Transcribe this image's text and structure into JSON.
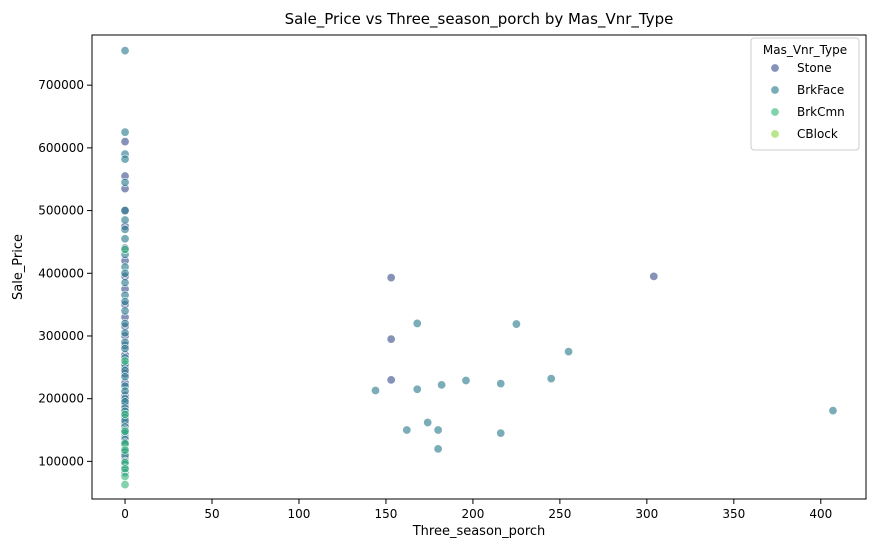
{
  "chart_data": {
    "type": "scatter",
    "title": "Sale_Price vs Three_season_porch by Mas_Vnr_Type",
    "xlabel": "Three_season_porch",
    "ylabel": "Sale_Price",
    "xlim": [
      -19,
      426
    ],
    "ylim": [
      40000,
      780000
    ],
    "x_ticks": [
      0,
      50,
      100,
      150,
      200,
      250,
      300,
      350,
      400
    ],
    "y_ticks": [
      100000,
      200000,
      300000,
      400000,
      500000,
      600000,
      700000
    ],
    "grid": false,
    "legend": {
      "title": "Mas_Vnr_Type",
      "position": "top-right"
    },
    "series": [
      {
        "name": "Stone",
        "color": "#3b4f8a",
        "points": [
          [
            0,
            610000
          ],
          [
            0,
            555000
          ],
          [
            0,
            535000
          ],
          [
            0,
            500000
          ],
          [
            0,
            475000
          ],
          [
            0,
            440000
          ],
          [
            0,
            420000
          ],
          [
            0,
            395000
          ],
          [
            0,
            375000
          ],
          [
            0,
            350000
          ],
          [
            0,
            330000
          ],
          [
            0,
            315000
          ],
          [
            0,
            300000
          ],
          [
            0,
            285000
          ],
          [
            0,
            270000
          ],
          [
            0,
            250000
          ],
          [
            0,
            240000
          ],
          [
            0,
            225000
          ],
          [
            0,
            205000
          ],
          [
            0,
            190000
          ],
          [
            0,
            175000
          ],
          [
            0,
            160000
          ],
          [
            0,
            140000
          ],
          [
            0,
            125000
          ],
          [
            0,
            105000
          ],
          [
            153,
            393000
          ],
          [
            153,
            295000
          ],
          [
            153,
            230000
          ],
          [
            304,
            395000
          ]
        ]
      },
      {
        "name": "BrkFace",
        "color": "#2a7b8e",
        "points": [
          [
            0,
            755000
          ],
          [
            0,
            625000
          ],
          [
            0,
            590000
          ],
          [
            0,
            582000
          ],
          [
            0,
            545000
          ],
          [
            0,
            500000
          ],
          [
            0,
            485000
          ],
          [
            0,
            470000
          ],
          [
            0,
            455000
          ],
          [
            0,
            430000
          ],
          [
            0,
            410000
          ],
          [
            0,
            400000
          ],
          [
            0,
            385000
          ],
          [
            0,
            365000
          ],
          [
            0,
            355000
          ],
          [
            0,
            340000
          ],
          [
            0,
            320000
          ],
          [
            0,
            305000
          ],
          [
            0,
            290000
          ],
          [
            0,
            280000
          ],
          [
            0,
            265000
          ],
          [
            0,
            255000
          ],
          [
            0,
            245000
          ],
          [
            0,
            235000
          ],
          [
            0,
            220000
          ],
          [
            0,
            212000
          ],
          [
            0,
            200000
          ],
          [
            0,
            195000
          ],
          [
            0,
            185000
          ],
          [
            0,
            180000
          ],
          [
            0,
            170000
          ],
          [
            0,
            165000
          ],
          [
            0,
            155000
          ],
          [
            0,
            150000
          ],
          [
            0,
            145000
          ],
          [
            0,
            135000
          ],
          [
            0,
            130000
          ],
          [
            0,
            120000
          ],
          [
            0,
            115000
          ],
          [
            0,
            110000
          ],
          [
            0,
            100000
          ],
          [
            0,
            95000
          ],
          [
            0,
            90000
          ],
          [
            0,
            82000
          ],
          [
            144,
            213000
          ],
          [
            162,
            150000
          ],
          [
            168,
            320000
          ],
          [
            168,
            215000
          ],
          [
            174,
            162000
          ],
          [
            180,
            150000
          ],
          [
            180,
            120000
          ],
          [
            182,
            222000
          ],
          [
            196,
            229000
          ],
          [
            216,
            224000
          ],
          [
            216,
            145000
          ],
          [
            225,
            319000
          ],
          [
            245,
            232000
          ],
          [
            255,
            275000
          ],
          [
            407,
            181000
          ]
        ]
      },
      {
        "name": "BrkCmn",
        "color": "#35b779",
        "points": [
          [
            0,
            438000
          ],
          [
            0,
            260000
          ],
          [
            0,
            175000
          ],
          [
            0,
            148000
          ],
          [
            0,
            128000
          ],
          [
            0,
            118000
          ],
          [
            0,
            98000
          ],
          [
            0,
            88000
          ],
          [
            0,
            76000
          ],
          [
            0,
            63000
          ]
        ]
      },
      {
        "name": "CBlock",
        "color": "#90d743",
        "points": []
      }
    ]
  }
}
